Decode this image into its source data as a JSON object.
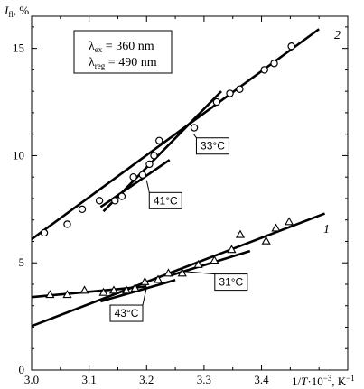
{
  "chart_data": {
    "type": "scatter",
    "title": "",
    "xlabel": "1/T·10⁻³, K⁻¹",
    "ylabel": "I_fl, %",
    "ylabel_main": "I",
    "ylabel_sub": "fl",
    "ylabel_unit": ", %",
    "xlabel_main": "1/",
    "xlabel_T": "T",
    "xlabel_rest": "·10",
    "xlabel_exp": "−3",
    "xlabel_unit": ", K",
    "xlabel_unit_exp": "−1",
    "xlim": [
      3.0,
      3.55
    ],
    "ylim": [
      0,
      16.5
    ],
    "x_ticks": [
      3.0,
      3.1,
      3.2,
      3.3,
      3.4
    ],
    "x_tick_labels": [
      "3.0",
      "3.1",
      "3.2",
      "3.3",
      "3.4"
    ],
    "y_ticks": [
      0,
      5,
      10,
      15
    ],
    "y_tick_labels": [
      "0",
      "5",
      "10",
      "15"
    ],
    "grid": false,
    "legend_box": {
      "line1_lambda": "λ",
      "line1_sub": "ex",
      "line1_value": " = 360 nm",
      "line2_lambda": "λ",
      "line2_sub": "reg",
      "line2_value": " = 490 nm"
    },
    "series": [
      {
        "name": "2",
        "marker": "circle",
        "points": [
          [
            3.022,
            6.4
          ],
          [
            3.062,
            6.8
          ],
          [
            3.088,
            7.5
          ],
          [
            3.118,
            7.9
          ],
          [
            3.145,
            7.9
          ],
          [
            3.157,
            8.1
          ],
          [
            3.177,
            9.0
          ],
          [
            3.193,
            9.1
          ],
          [
            3.205,
            9.6
          ],
          [
            3.213,
            10.0
          ],
          [
            3.222,
            10.7
          ],
          [
            3.283,
            11.3
          ],
          [
            3.322,
            12.5
          ],
          [
            3.345,
            12.9
          ],
          [
            3.362,
            13.1
          ],
          [
            3.405,
            14.0
          ],
          [
            3.422,
            14.3
          ],
          [
            3.452,
            15.1
          ]
        ],
        "fit_lines": [
          {
            "x": [
              3.0,
              3.5
            ],
            "y": [
              6.1,
              15.9
            ]
          },
          {
            "x": [
              3.125,
              3.33
            ],
            "y": [
              7.4,
              13.0
            ]
          },
          {
            "x": [
              3.12,
              3.24
            ],
            "y": [
              7.6,
              9.8
            ]
          }
        ]
      },
      {
        "name": "1",
        "marker": "triangle",
        "points": [
          [
            3.032,
            3.5
          ],
          [
            3.062,
            3.5
          ],
          [
            3.092,
            3.7
          ],
          [
            3.125,
            3.6
          ],
          [
            3.143,
            3.7
          ],
          [
            3.165,
            3.7
          ],
          [
            3.18,
            3.8
          ],
          [
            3.197,
            4.1
          ],
          [
            3.22,
            4.2
          ],
          [
            3.238,
            4.5
          ],
          [
            3.262,
            4.5
          ],
          [
            3.29,
            4.9
          ],
          [
            3.318,
            5.1
          ],
          [
            3.348,
            5.6
          ],
          [
            3.363,
            6.3
          ],
          [
            3.408,
            6.0
          ],
          [
            3.425,
            6.6
          ],
          [
            3.448,
            6.9
          ]
        ],
        "fit_lines": [
          {
            "x": [
              3.0,
              3.2
            ],
            "y": [
              3.4,
              3.9
            ]
          },
          {
            "x": [
              3.12,
              3.25
            ],
            "y": [
              3.2,
              4.2
            ]
          },
          {
            "x": [
              3.0,
              3.51
            ],
            "y": [
              2.05,
              7.3
            ]
          },
          {
            "x": [
              3.24,
              3.38
            ],
            "y": [
              4.4,
              5.55
            ]
          }
        ]
      }
    ],
    "annotations": [
      {
        "text": "33°C",
        "pointer_to": [
          3.282,
          11.0
        ],
        "label_at": [
          3.315,
          10.45
        ]
      },
      {
        "text": "41°C",
        "pointer_to": [
          3.2,
          8.85
        ],
        "label_at": [
          3.233,
          7.9
        ]
      },
      {
        "text": "31°C",
        "pointer_to": [
          3.265,
          4.6
        ],
        "label_at": [
          3.347,
          4.1
        ]
      },
      {
        "text": "43°C",
        "pointer_to": [
          3.2,
          3.85
        ],
        "label_at": [
          3.165,
          2.65
        ]
      }
    ]
  }
}
